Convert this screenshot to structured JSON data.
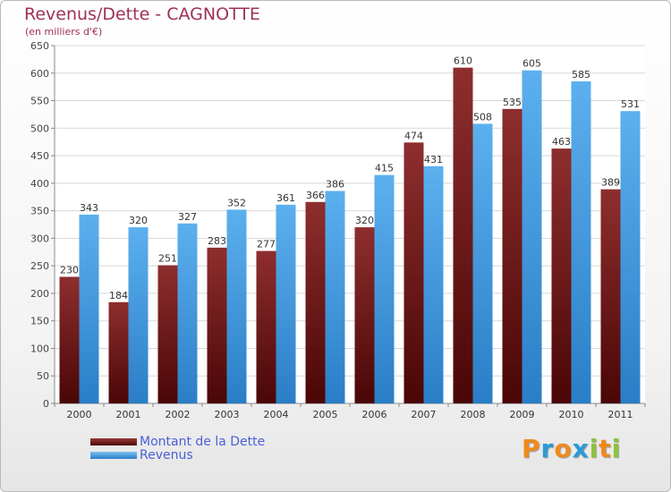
{
  "chart_data": {
    "type": "bar",
    "title": "Revenus/Dette - CAGNOTTE",
    "subtitle": "(en milliers d'€)",
    "categories": [
      "2000",
      "2001",
      "2002",
      "2003",
      "2004",
      "2005",
      "2006",
      "2007",
      "2008",
      "2009",
      "2010",
      "2011"
    ],
    "series": [
      {
        "name": "Montant de la Dette",
        "color": "#7a1a1a",
        "values": [
          230,
          184,
          251,
          283,
          277,
          366,
          320,
          474,
          610,
          535,
          463,
          389
        ]
      },
      {
        "name": "Revenus",
        "color": "#4ea3e6",
        "values": [
          343,
          320,
          327,
          352,
          361,
          386,
          415,
          431,
          508,
          605,
          585,
          531
        ]
      }
    ],
    "ylim": [
      0,
      650
    ],
    "yticks": [
      0,
      50,
      100,
      150,
      200,
      250,
      300,
      350,
      400,
      450,
      500,
      550,
      600,
      650
    ],
    "grid": true,
    "legend_position": "bottom-left"
  },
  "branding": {
    "logo_letters": [
      "P",
      "r",
      "o",
      "x",
      "i",
      "t",
      "i"
    ],
    "logo_colors": [
      "#f08a1c",
      "#2a9ad8",
      "#f08a1c",
      "#2a9ad8",
      "#8cc43c",
      "#f08a1c",
      "#8cc43c"
    ]
  }
}
